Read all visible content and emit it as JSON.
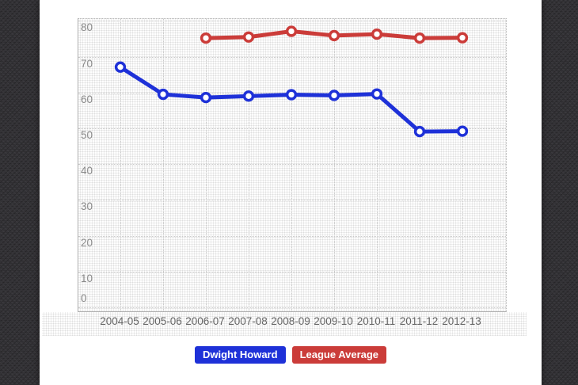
{
  "chart_data": {
    "type": "line",
    "title": "",
    "xlabel": "",
    "ylabel": "",
    "categories": [
      "2004-05",
      "2005-06",
      "2006-07",
      "2007-08",
      "2008-09",
      "2009-10",
      "2010-11",
      "2011-12",
      "2012-13"
    ],
    "series": [
      {
        "name": "Dwight Howard",
        "color": "#1e31d8",
        "values": [
          67.1,
          59.5,
          58.6,
          59.0,
          59.4,
          59.2,
          59.6,
          49.1,
          49.2
        ]
      },
      {
        "name": "League Average",
        "color": "#cb3c39",
        "values": [
          null,
          null,
          75.2,
          75.5,
          77.1,
          75.9,
          76.3,
          75.2,
          75.3
        ]
      }
    ],
    "ylim": [
      0,
      80
    ],
    "yticks": [
      0,
      10,
      20,
      30,
      40,
      50,
      60,
      70,
      80
    ],
    "grid": true,
    "gridline_style": "dotted",
    "marker": "open-circle",
    "legend_position": "bottom"
  }
}
